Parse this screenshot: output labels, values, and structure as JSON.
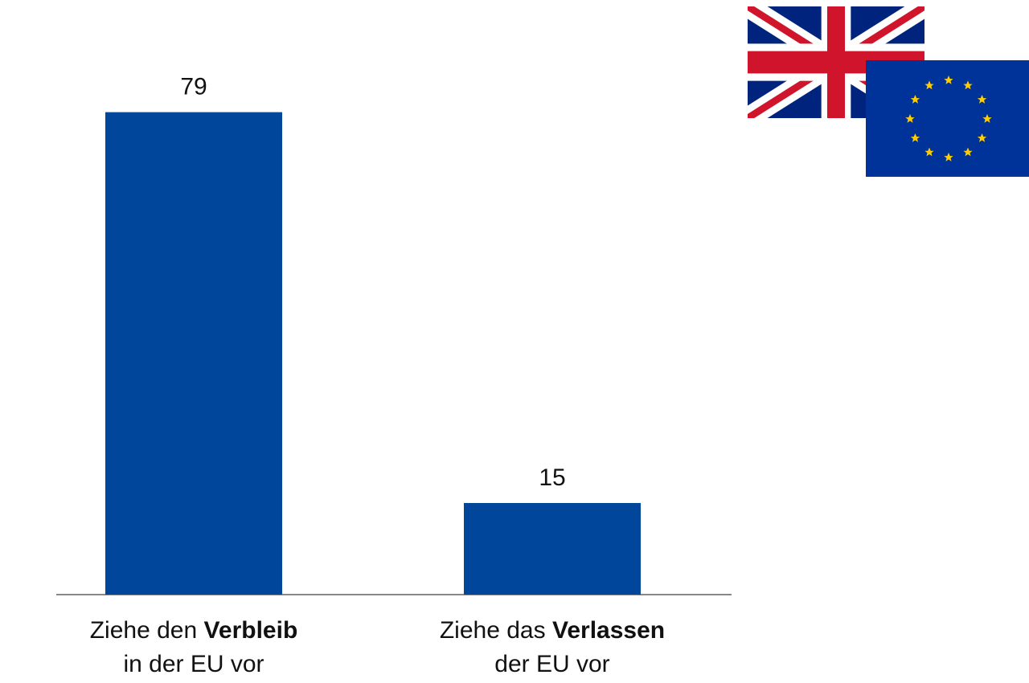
{
  "chart_data": {
    "type": "bar",
    "categories": [
      {
        "lines": [
          [
            {
              "text": "Ziehe den"
            },
            {
              "text": "Verbleib",
              "bold": true
            }
          ],
          [
            {
              "text": "in der EU vor"
            }
          ]
        ]
      },
      {
        "lines": [
          [
            {
              "text": "Ziehe das"
            },
            {
              "text": "Verlassen",
              "bold": true
            }
          ],
          [
            {
              "text": "der EU vor"
            }
          ]
        ]
      }
    ],
    "values": [
      79,
      15
    ],
    "color": "#00479b",
    "ylim": [
      0,
      85
    ]
  }
}
